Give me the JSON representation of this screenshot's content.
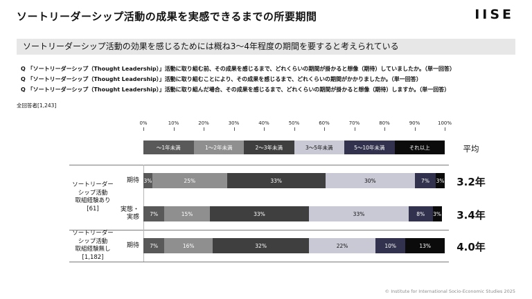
{
  "slide": {
    "title": "ソートリーダーシップ活動の成果を実感できるまでの所要期間",
    "logo": "IISE",
    "key_message": "ソートリーダーシップ活動の効果を感じるためには概ね3〜4年程度の期間を要すると考えられている",
    "questions": [
      "Q 「ソートリーダーシップ（Thought Leadership）」活動に取り組む前、その成果を感じるまで、どれくらいの期間が掛かると想像（期待）していましたか。（単一回答）",
      "Q 「ソートリーダーシップ（Thought Leadership）」活動に取り組むことにより、その成果を感じるまで、どれくらいの期間がかかりましたか。（単一回答）",
      "Q 「ソートリーダーシップ（Thought Leadership）」活動に取り組んだ場合、その成果を感じるまで、どれくらいの期間が掛かると想像（期待）しますか。（単一回答）"
    ],
    "respondents": "全回答者[1,243]",
    "footer": "© Institute for International Socio-Economic Studies 2025"
  },
  "chart_data": {
    "type": "bar",
    "stacked": true,
    "orientation": "horizontal",
    "unit": "%",
    "axis_ticks": [
      "0%",
      "10%",
      "20%",
      "30%",
      "40%",
      "50%",
      "60%",
      "70%",
      "80%",
      "90%",
      "100%"
    ],
    "xlim": [
      0,
      100
    ],
    "categories": [
      "～1年未満",
      "1～2年未満",
      "2～3年未満",
      "3～5年未満",
      "5～10年未満",
      "それ以上"
    ],
    "category_colors": [
      "#595959",
      "#8f8f8f",
      "#3f3f3f",
      "#c9c9d6",
      "#32324e",
      "#0b0b0b"
    ],
    "average_header": "平均",
    "groups": [
      {
        "label_lines": [
          "ソートリーダー",
          "シップ活動",
          "取組経験あり",
          "[61]"
        ],
        "rows": [
          {
            "label_lines": [
              "期待"
            ],
            "values": [
              3,
              25,
              33,
              30,
              7,
              3
            ],
            "average": "3.2年"
          },
          {
            "label_lines": [
              "実態・",
              "実感"
            ],
            "values": [
              7,
              15,
              33,
              33,
              8,
              3
            ],
            "average": "3.4年"
          }
        ]
      },
      {
        "label_lines": [
          "ソートリーダー",
          "シップ活動",
          "取組経験無し",
          "[1,182]"
        ],
        "rows": [
          {
            "label_lines": [
              "期待"
            ],
            "values": [
              7,
              16,
              32,
              22,
              10,
              13
            ],
            "average": "4.0年"
          }
        ]
      }
    ]
  }
}
